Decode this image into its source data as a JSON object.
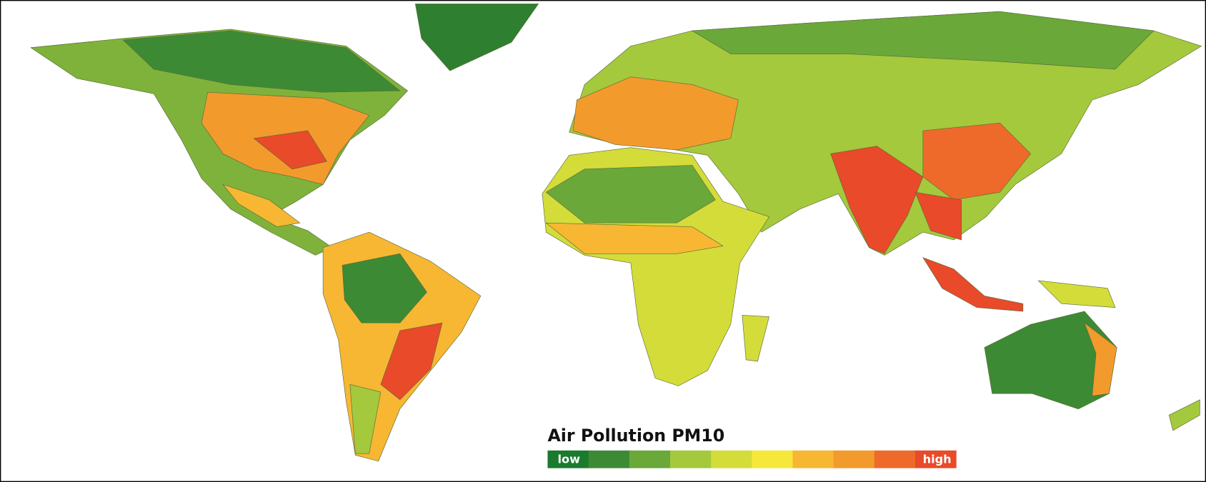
{
  "legend": {
    "title": "Air Pollution PM10",
    "low_label": "low",
    "high_label": "high",
    "colors": [
      "#1a7a2e",
      "#3d8a34",
      "#6aa83a",
      "#a4c93c",
      "#d4dc3a",
      "#f5e83a",
      "#f7b733",
      "#f39a2c",
      "#ee6a2a",
      "#e84a2a"
    ]
  }
}
